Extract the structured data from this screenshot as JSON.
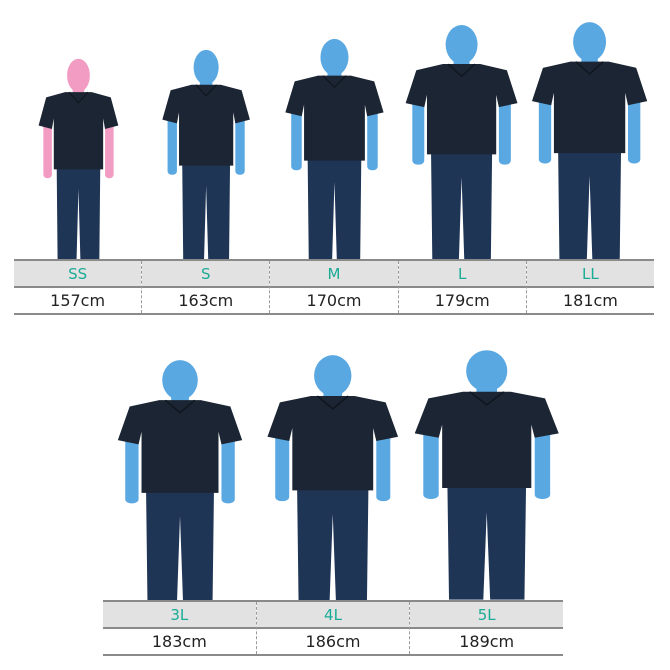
{
  "colors": {
    "size_label": "#1aab96",
    "header_bg": "#e2e2e2",
    "head_male": "#5aa8e2",
    "head_female": "#f29cc4",
    "shirt": "#1c2533",
    "pants": "#1f3556"
  },
  "rows": [
    [
      {
        "size": "SS",
        "height": "157cm",
        "cm": 157,
        "figure": "female"
      },
      {
        "size": "S",
        "height": "163cm",
        "cm": 163,
        "figure": "male"
      },
      {
        "size": "M",
        "height": "170cm",
        "cm": 170,
        "figure": "male"
      },
      {
        "size": "L",
        "height": "179cm",
        "cm": 179,
        "figure": "male"
      },
      {
        "size": "LL",
        "height": "181cm",
        "cm": 181,
        "figure": "male"
      }
    ],
    [
      {
        "size": "3L",
        "height": "183cm",
        "cm": 183,
        "figure": "male"
      },
      {
        "size": "4L",
        "height": "186cm",
        "cm": 186,
        "figure": "male"
      },
      {
        "size": "5L",
        "height": "189cm",
        "cm": 189,
        "figure": "male"
      }
    ]
  ]
}
